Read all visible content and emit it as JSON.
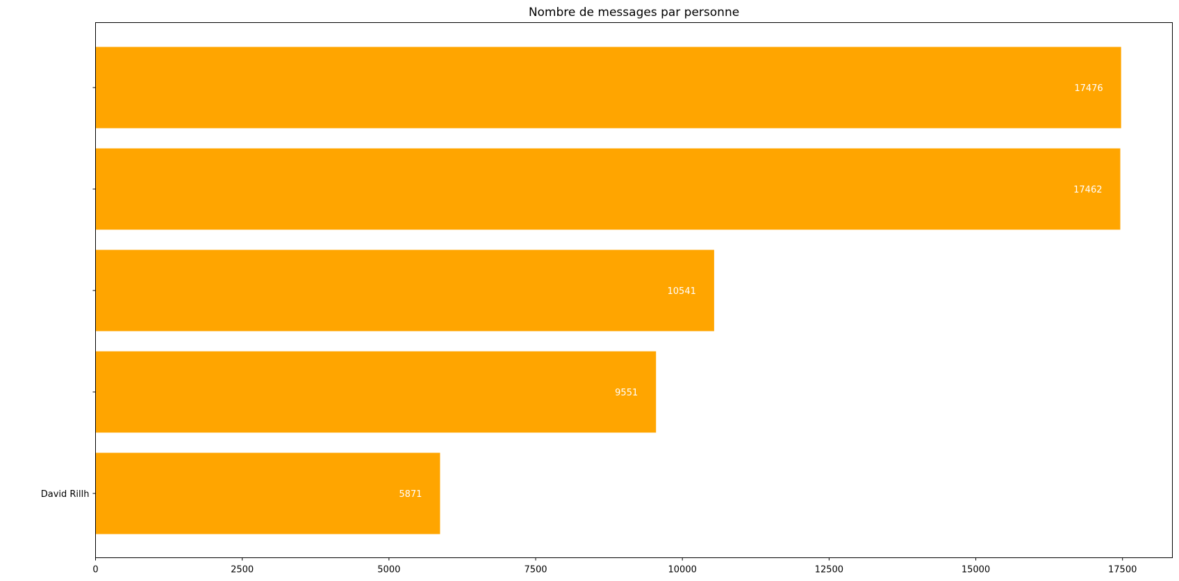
{
  "chart_data": {
    "type": "bar",
    "orientation": "horizontal",
    "title": "Nombre de messages par personne",
    "xlabel": "",
    "ylabel": "",
    "categories": [
      "",
      "",
      "",
      "",
      "David Rillh"
    ],
    "values": [
      17476,
      17462,
      10541,
      9551,
      5871
    ],
    "data_labels": [
      "17476",
      "17462",
      "10541",
      "9551",
      "5871"
    ],
    "xlim": [
      0,
      18350
    ],
    "xticks": [
      0,
      2500,
      5000,
      7500,
      10000,
      12500,
      15000,
      17500
    ],
    "xtick_labels": [
      "0",
      "2500",
      "5000",
      "7500",
      "10000",
      "12500",
      "15000",
      "17500"
    ],
    "grid": false,
    "legend": "none",
    "colors": {
      "bar": "#FFA500",
      "data_label": "#ffffff",
      "axis": "#000000"
    }
  }
}
